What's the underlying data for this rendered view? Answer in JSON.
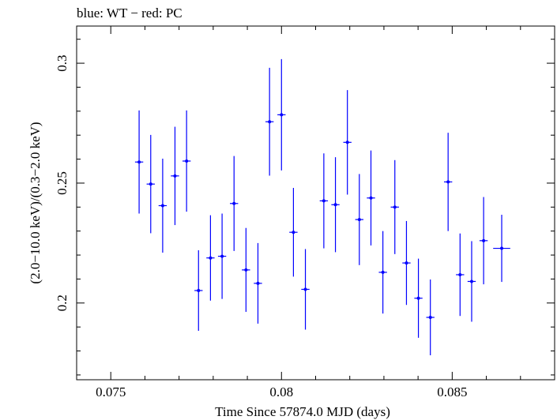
{
  "chart_data": {
    "type": "scatter",
    "title": "blue: WT − red: PC",
    "xlabel": "Time Since 57874.0 MJD (days)",
    "ylabel": "(2.0−10.0 keV)/(0.3−2.0 keV)",
    "xlim": [
      0.074,
      0.088
    ],
    "ylim": [
      0.168,
      0.3155
    ],
    "x_ticks": [
      0.075,
      0.08,
      0.085
    ],
    "x_tick_labels": [
      "0.075",
      "0.08",
      "0.085"
    ],
    "y_ticks": [
      0.2,
      0.25,
      0.3
    ],
    "y_tick_labels": [
      "0.2",
      "0.25",
      "0.3"
    ],
    "grid": false,
    "series_color": "#0000ff",
    "points": [
      {
        "x": 0.07583,
        "xerr": 0.00012,
        "y": 0.2588,
        "yerr": 0.0215
      },
      {
        "x": 0.07617,
        "xerr": 0.00012,
        "y": 0.2496,
        "yerr": 0.0205
      },
      {
        "x": 0.07652,
        "xerr": 0.00012,
        "y": 0.2406,
        "yerr": 0.0196
      },
      {
        "x": 0.07688,
        "xerr": 0.00012,
        "y": 0.253,
        "yerr": 0.0205
      },
      {
        "x": 0.07722,
        "xerr": 0.00012,
        "y": 0.2592,
        "yerr": 0.0211
      },
      {
        "x": 0.07757,
        "xerr": 0.00012,
        "y": 0.2052,
        "yerr": 0.0168
      },
      {
        "x": 0.07792,
        "xerr": 0.00012,
        "y": 0.2188,
        "yerr": 0.0178
      },
      {
        "x": 0.07826,
        "xerr": 0.00012,
        "y": 0.2195,
        "yerr": 0.0178
      },
      {
        "x": 0.07861,
        "xerr": 0.00012,
        "y": 0.2415,
        "yerr": 0.0198
      },
      {
        "x": 0.07896,
        "xerr": 0.00012,
        "y": 0.2138,
        "yerr": 0.0175
      },
      {
        "x": 0.07931,
        "xerr": 0.00012,
        "y": 0.2082,
        "yerr": 0.0168
      },
      {
        "x": 0.07965,
        "xerr": 0.00012,
        "y": 0.2756,
        "yerr": 0.0225
      },
      {
        "x": 0.08,
        "xerr": 0.00012,
        "y": 0.2785,
        "yerr": 0.0232
      },
      {
        "x": 0.08035,
        "xerr": 0.00012,
        "y": 0.2295,
        "yerr": 0.0185
      },
      {
        "x": 0.0807,
        "xerr": 0.00012,
        "y": 0.2057,
        "yerr": 0.0168
      },
      {
        "x": 0.08124,
        "xerr": 0.00012,
        "y": 0.2426,
        "yerr": 0.0198
      },
      {
        "x": 0.08158,
        "xerr": 0.00012,
        "y": 0.241,
        "yerr": 0.0198
      },
      {
        "x": 0.08193,
        "xerr": 0.00012,
        "y": 0.267,
        "yerr": 0.0218
      },
      {
        "x": 0.08228,
        "xerr": 0.00012,
        "y": 0.2348,
        "yerr": 0.019
      },
      {
        "x": 0.08262,
        "xerr": 0.00012,
        "y": 0.2438,
        "yerr": 0.0198
      },
      {
        "x": 0.08297,
        "xerr": 0.00012,
        "y": 0.2128,
        "yerr": 0.0172
      },
      {
        "x": 0.08332,
        "xerr": 0.00012,
        "y": 0.24,
        "yerr": 0.0196
      },
      {
        "x": 0.08366,
        "xerr": 0.00012,
        "y": 0.2167,
        "yerr": 0.0175
      },
      {
        "x": 0.08401,
        "xerr": 0.00012,
        "y": 0.202,
        "yerr": 0.0165
      },
      {
        "x": 0.08436,
        "xerr": 0.00012,
        "y": 0.194,
        "yerr": 0.0158
      },
      {
        "x": 0.08488,
        "xerr": 0.00012,
        "y": 0.2505,
        "yerr": 0.0205
      },
      {
        "x": 0.08523,
        "xerr": 0.00012,
        "y": 0.2118,
        "yerr": 0.0172
      },
      {
        "x": 0.08557,
        "xerr": 0.00012,
        "y": 0.209,
        "yerr": 0.0168
      },
      {
        "x": 0.08592,
        "xerr": 0.00012,
        "y": 0.226,
        "yerr": 0.0182
      },
      {
        "x": 0.08645,
        "xerr": 0.00025,
        "y": 0.2228,
        "yerr": 0.014
      }
    ]
  }
}
